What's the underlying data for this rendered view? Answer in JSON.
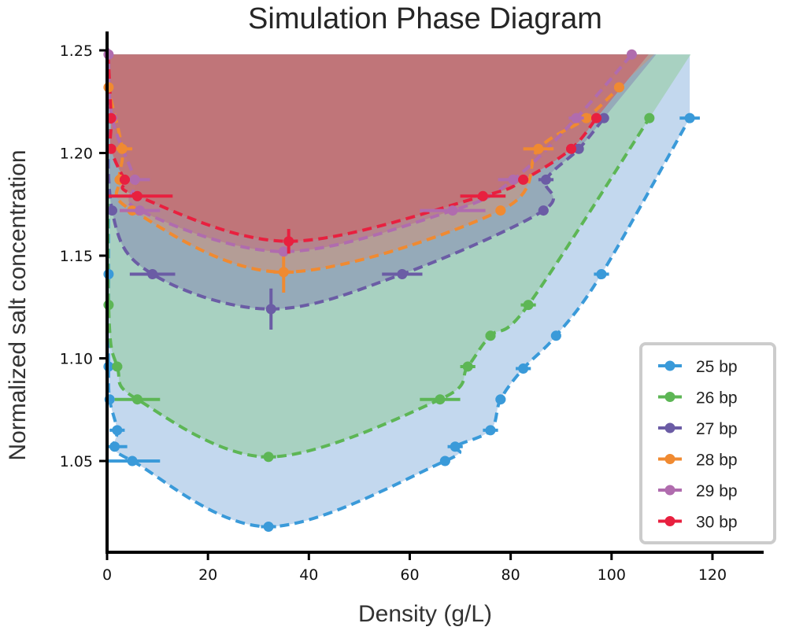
{
  "chart_data": {
    "type": "line",
    "title": "Simulation Phase Diagram",
    "xlabel": "Density (g/L)",
    "ylabel": "Normalized salt concentration",
    "xlim": [
      0,
      130
    ],
    "ylim": [
      1.005,
      1.258
    ],
    "fill_top": 1.248,
    "xticks": [
      0,
      20,
      40,
      60,
      80,
      100,
      120
    ],
    "xtick_labels": [
      "0",
      "20",
      "40",
      "60",
      "80",
      "100",
      "120"
    ],
    "yticks": [
      1.05,
      1.1,
      1.15,
      1.2,
      1.25
    ],
    "ytick_labels": [
      "1.05",
      "1.10",
      "1.15",
      "1.20",
      "1.25"
    ],
    "grid": false,
    "legend_position": "bottom-right",
    "series": [
      {
        "name": "25 bp",
        "color": "#3a9ad9",
        "fill": "#c3d8ee",
        "points": [
          {
            "x": 0.3,
            "y": 1.141,
            "xerr": 0.3
          },
          {
            "x": 0.3,
            "y": 1.096,
            "xerr": 0.3
          },
          {
            "x": 0.5,
            "y": 1.08,
            "xerr": 0.5
          },
          {
            "x": 2.0,
            "y": 1.065,
            "xerr": 1.5
          },
          {
            "x": 1.5,
            "y": 1.057,
            "xerr": 2.5
          },
          {
            "x": 5.0,
            "y": 1.05,
            "xerr": 5.5
          },
          {
            "x": 32.0,
            "y": 1.018,
            "xerr": 1.5
          },
          {
            "x": 67.0,
            "y": 1.05,
            "xerr": 1.0
          },
          {
            "x": 69.0,
            "y": 1.057,
            "xerr": 1.5
          },
          {
            "x": 76.0,
            "y": 1.065,
            "xerr": 1.5
          },
          {
            "x": 78.0,
            "y": 1.08,
            "xerr": 1.0
          },
          {
            "x": 82.5,
            "y": 1.095,
            "xerr": 1.5
          },
          {
            "x": 89.0,
            "y": 1.111,
            "xerr": 1.0
          },
          {
            "x": 98.0,
            "y": 1.141,
            "xerr": 1.5
          },
          {
            "x": 115.5,
            "y": 1.217,
            "xerr": 2.0
          }
        ],
        "curve": {
          "left_x": 0.0,
          "min_x": 32.0,
          "min_y": 1.018,
          "right_points": [
            [
              67,
              1.05
            ],
            [
              89,
              1.111
            ],
            [
              115.5,
              1.217
            ]
          ]
        }
      },
      {
        "name": "26 bp",
        "color": "#5db655",
        "fill": "#a6d0bd",
        "points": [
          {
            "x": 0.3,
            "y": 1.126,
            "xerr": 0.3
          },
          {
            "x": 2.0,
            "y": 1.096,
            "xerr": 1.0
          },
          {
            "x": 6.0,
            "y": 1.08,
            "xerr": 4.5
          },
          {
            "x": 32.0,
            "y": 1.052,
            "xerr": 1.5
          },
          {
            "x": 66.0,
            "y": 1.08,
            "xerr": 4.0
          },
          {
            "x": 71.5,
            "y": 1.096,
            "xerr": 1.5
          },
          {
            "x": 76.0,
            "y": 1.111,
            "xerr": 1.0
          },
          {
            "x": 83.5,
            "y": 1.126,
            "xerr": 1.5
          },
          {
            "x": 107.5,
            "y": 1.217,
            "xerr": 0.5
          }
        ]
      },
      {
        "name": "27 bp",
        "color": "#6b5ca5",
        "fill": "#94a6b8",
        "points": [
          {
            "x": 1.0,
            "y": 1.172,
            "xerr": 1.0
          },
          {
            "x": 9.0,
            "y": 1.141,
            "xerr": 4.5
          },
          {
            "x": 32.5,
            "y": 1.124,
            "xerr": 0.5,
            "yerr": 0.01
          },
          {
            "x": 58.5,
            "y": 1.141,
            "xerr": 4.0
          },
          {
            "x": 86.5,
            "y": 1.172,
            "xerr": 1.0
          },
          {
            "x": 87.0,
            "y": 1.187,
            "xerr": 1.5
          },
          {
            "x": 93.5,
            "y": 1.202,
            "xerr": 1.0
          },
          {
            "x": 98.5,
            "y": 1.217,
            "xerr": 1.0
          }
        ]
      },
      {
        "name": "28 bp",
        "color": "#f08a31",
        "fill": "#b69c93",
        "points": [
          {
            "x": 0.3,
            "y": 1.232,
            "xerr": 0.3
          },
          {
            "x": 3.0,
            "y": 1.202,
            "xerr": 2.0
          },
          {
            "x": 2.5,
            "y": 1.187,
            "xerr": 1.0
          },
          {
            "x": 5.0,
            "y": 1.172,
            "xerr": 2.5
          },
          {
            "x": 35.0,
            "y": 1.142,
            "xerr": 2.0,
            "yerr": 0.01
          },
          {
            "x": 78.0,
            "y": 1.172,
            "xerr": 1.0
          },
          {
            "x": 85.5,
            "y": 1.202,
            "xerr": 3.0
          },
          {
            "x": 95.0,
            "y": 1.217,
            "xerr": 1.0
          },
          {
            "x": 101.5,
            "y": 1.232,
            "xerr": 1.0
          }
        ]
      },
      {
        "name": "29 bp",
        "color": "#b06cae",
        "fill": "#b5828c",
        "points": [
          {
            "x": 0.3,
            "y": 1.248,
            "xerr": 0.3
          },
          {
            "x": 1.0,
            "y": 1.217,
            "xerr": 1.0
          },
          {
            "x": 5.5,
            "y": 1.187,
            "xerr": 3.0
          },
          {
            "x": 6.5,
            "y": 1.172,
            "xerr": 4.0
          },
          {
            "x": 35.0,
            "y": 1.152,
            "xerr": 1.0
          },
          {
            "x": 68.5,
            "y": 1.172,
            "xerr": 6.5
          },
          {
            "x": 80.5,
            "y": 1.187,
            "xerr": 3.0
          },
          {
            "x": 93.0,
            "y": 1.217,
            "xerr": 1.5
          },
          {
            "x": 104.0,
            "y": 1.248,
            "xerr": 0.5
          }
        ]
      },
      {
        "name": "30 bp",
        "color": "#e8203f",
        "fill": "#c17477",
        "points": [
          {
            "x": 0.8,
            "y": 1.217,
            "xerr": 0.5
          },
          {
            "x": 0.8,
            "y": 1.202,
            "xerr": 0.5
          },
          {
            "x": 3.5,
            "y": 1.187,
            "xerr": 1.0
          },
          {
            "x": 6.0,
            "y": 1.179,
            "xerr": 7.0
          },
          {
            "x": 36.0,
            "y": 1.157,
            "xerr": 1.0,
            "yerr": 0.006
          },
          {
            "x": 74.5,
            "y": 1.179,
            "xerr": 4.5
          },
          {
            "x": 82.5,
            "y": 1.187,
            "xerr": 1.0
          },
          {
            "x": 92.0,
            "y": 1.202,
            "xerr": 1.0
          },
          {
            "x": 97.0,
            "y": 1.217,
            "xerr": 1.0
          }
        ]
      }
    ]
  }
}
